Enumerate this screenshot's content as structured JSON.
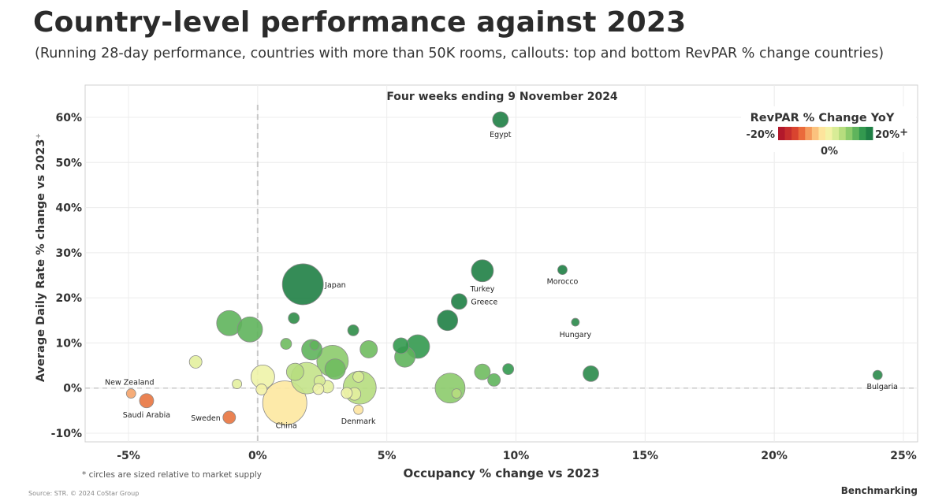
{
  "title": "Country-level performance against 2023",
  "subtitle": "(Running 28-day performance, countries with more than 50K rooms, callouts: top and bottom RevPAR % change countries)",
  "footnote": "* circles are sized relative to market supply",
  "source": "Source: STR. © 2024 CoStar Group",
  "brand": "Benchmarking",
  "chart_data": {
    "type": "scatter",
    "title": "Four weeks ending 9 November 2024",
    "xlabel": "Occupancy % change vs 2023",
    "ylabel": "Average Daily Rate % change vs 2023",
    "ylabel_suffix": "⁺",
    "xlim": [
      -6.5,
      25.5
    ],
    "ylim": [
      -12,
      62
    ],
    "x_ticks": [
      -5,
      0,
      5,
      10,
      15,
      20,
      25
    ],
    "x_tick_labels": [
      "-5%",
      "0%",
      "5%",
      "10%",
      "15%",
      "20%",
      "25%"
    ],
    "y_ticks": [
      -10,
      0,
      10,
      20,
      30,
      40,
      50,
      60
    ],
    "y_tick_labels": [
      "-10%",
      "0%",
      "10%",
      "20%",
      "30%",
      "40%",
      "50%",
      "60%"
    ],
    "grid": true,
    "legend": {
      "title": "RevPAR % Change YoY",
      "min_label": "-20%",
      "max_label": "20%",
      "max_suffix": "+",
      "mid_label": "0%",
      "placement": "top-right",
      "colors": [
        "#b2182b",
        "#c62d2d",
        "#d9442f",
        "#ea6a3b",
        "#f49a5c",
        "#fbc27e",
        "#fde49c",
        "#f3f2a6",
        "#d8ec96",
        "#b6dd7e",
        "#8ccb6b",
        "#5fb45c",
        "#33994f",
        "#1f7f45"
      ]
    },
    "points": [
      {
        "label": "Egypt",
        "x": 9.4,
        "y": 59.5,
        "r": 10,
        "color": "#1f7f45"
      },
      {
        "label": "Japan",
        "x": 1.75,
        "y": 23,
        "r": 26,
        "color": "#1f7f45"
      },
      {
        "label": "Turkey",
        "x": 8.7,
        "y": 26,
        "r": 14,
        "color": "#1f7f45"
      },
      {
        "label": "Greece",
        "x": 7.8,
        "y": 19.2,
        "r": 10,
        "color": "#1f7f45"
      },
      {
        "label": "Morocco",
        "x": 11.8,
        "y": 26.2,
        "r": 6,
        "color": "#1f7f45"
      },
      {
        "label": "Hungary",
        "x": 12.3,
        "y": 14.6,
        "r": 5,
        "color": "#2a8a4a"
      },
      {
        "label": "Bulgaria",
        "x": 24,
        "y": 2.9,
        "r": 6,
        "color": "#2a8a4a"
      },
      {
        "label": "New Zealand",
        "x": -4.9,
        "y": -1.2,
        "r": 6,
        "color": "#f4a36a"
      },
      {
        "label": "Saudi Arabia",
        "x": -4.3,
        "y": -2.8,
        "r": 9,
        "color": "#e8743f"
      },
      {
        "label": "Sweden",
        "x": -1.1,
        "y": -6.5,
        "r": 8,
        "color": "#e8743f"
      },
      {
        "label": "China",
        "x": 1.05,
        "y": -3.3,
        "r": 28,
        "color": "#fde8a0"
      },
      {
        "label": "Denmark",
        "x": 3.9,
        "y": -4.8,
        "r": 6,
        "color": "#fde4a0"
      },
      {
        "label": "",
        "x": -1.1,
        "y": 14.4,
        "r": 16,
        "color": "#5fb45c"
      },
      {
        "label": "",
        "x": -0.3,
        "y": 13,
        "r": 16,
        "color": "#5fb45c"
      },
      {
        "label": "",
        "x": 1.4,
        "y": 15.5,
        "r": 7,
        "color": "#2f8d48"
      },
      {
        "label": "",
        "x": 3.7,
        "y": 12.8,
        "r": 7,
        "color": "#2f8d48"
      },
      {
        "label": "",
        "x": 1.1,
        "y": 9.8,
        "r": 7,
        "color": "#6fbb5f"
      },
      {
        "label": "",
        "x": 2.1,
        "y": 8.5,
        "r": 13,
        "color": "#5fb45c"
      },
      {
        "label": "",
        "x": 2.2,
        "y": 9.5,
        "r": 6,
        "color": "#5fb45c"
      },
      {
        "label": "",
        "x": 2.9,
        "y": 6,
        "r": 20,
        "color": "#8ccb6b"
      },
      {
        "label": "",
        "x": 3,
        "y": 4.2,
        "r": 13,
        "color": "#6fbb5f"
      },
      {
        "label": "",
        "x": 4.3,
        "y": 8.6,
        "r": 11,
        "color": "#6fbb5f"
      },
      {
        "label": "",
        "x": -2.4,
        "y": 5.8,
        "r": 8,
        "color": "#e3ef9e"
      },
      {
        "label": "",
        "x": -0.8,
        "y": 0.9,
        "r": 6,
        "color": "#e3ef9e"
      },
      {
        "label": "",
        "x": 0.2,
        "y": 2.5,
        "r": 15,
        "color": "#eef3a8"
      },
      {
        "label": "",
        "x": 0.15,
        "y": -0.3,
        "r": 7,
        "color": "#f3f2a6"
      },
      {
        "label": "",
        "x": 1.45,
        "y": 3.6,
        "r": 11,
        "color": "#b6dd7e"
      },
      {
        "label": "",
        "x": 1.9,
        "y": 2.2,
        "r": 20,
        "color": "#c4e38a"
      },
      {
        "label": "",
        "x": 2.4,
        "y": 1.6,
        "r": 7,
        "color": "#d8ec96"
      },
      {
        "label": "",
        "x": 2.35,
        "y": -0.2,
        "r": 7,
        "color": "#eef3a8"
      },
      {
        "label": "",
        "x": 2.7,
        "y": 0.3,
        "r": 8,
        "color": "#e3ef9e"
      },
      {
        "label": "",
        "x": 3.95,
        "y": 0.1,
        "r": 21,
        "color": "#b6dd7e"
      },
      {
        "label": "",
        "x": 3.9,
        "y": 2.5,
        "r": 7,
        "color": "#d8ec96"
      },
      {
        "label": "",
        "x": 3.45,
        "y": -1.1,
        "r": 7,
        "color": "#eef3a8"
      },
      {
        "label": "",
        "x": 3.75,
        "y": -1.3,
        "r": 8,
        "color": "#e3ef9e"
      },
      {
        "label": "",
        "x": 5.55,
        "y": 9.4,
        "r": 10,
        "color": "#33994f"
      },
      {
        "label": "",
        "x": 6.2,
        "y": 9.2,
        "r": 15,
        "color": "#33994f"
      },
      {
        "label": "",
        "x": 5.7,
        "y": 6.9,
        "r": 13,
        "color": "#5fb45c"
      },
      {
        "label": "",
        "x": 7.35,
        "y": 15,
        "r": 13,
        "color": "#1f7f45"
      },
      {
        "label": "",
        "x": 7.45,
        "y": 0,
        "r": 19,
        "color": "#8ccb6b"
      },
      {
        "label": "",
        "x": 7.7,
        "y": -1.2,
        "r": 6,
        "color": "#b6dd7e"
      },
      {
        "label": "",
        "x": 8.7,
        "y": 3.6,
        "r": 10,
        "color": "#6fbb5f"
      },
      {
        "label": "",
        "x": 9.15,
        "y": 1.8,
        "r": 8,
        "color": "#5fb45c"
      },
      {
        "label": "",
        "x": 9.7,
        "y": 4.2,
        "r": 7,
        "color": "#33994f"
      },
      {
        "label": "",
        "x": 12.9,
        "y": 3.2,
        "r": 10,
        "color": "#2a8a4a"
      }
    ]
  }
}
